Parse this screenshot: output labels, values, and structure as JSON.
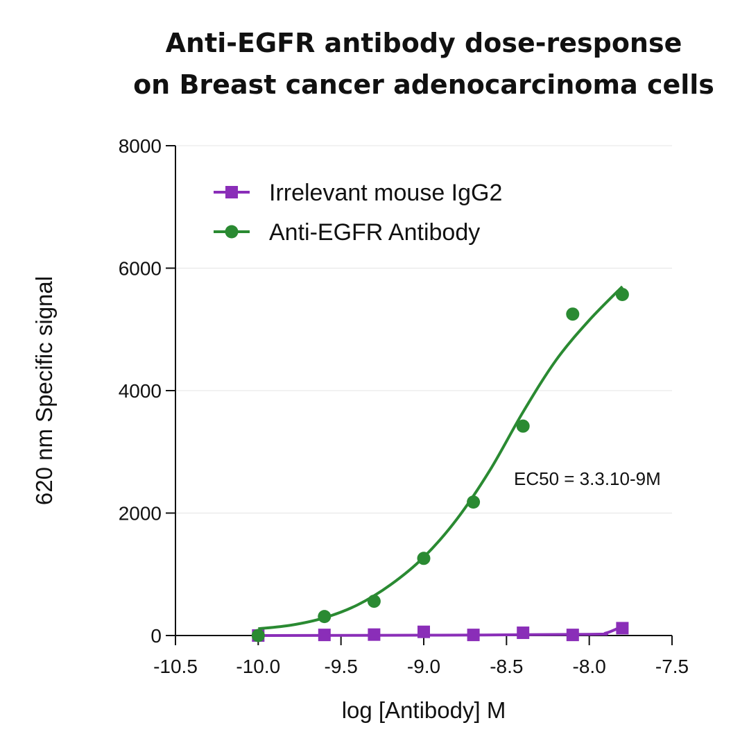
{
  "chart_data": {
    "type": "scatter",
    "title": "Anti-EGFR antibody dose-response",
    "subtitle": "on Breast cancer adenocarcinoma cells",
    "xlabel": "log [Antibody] M",
    "ylabel": "620 nm Specific signal",
    "xlim": [
      -10.5,
      -7.5
    ],
    "ylim": [
      0,
      8000
    ],
    "x_ticks": [
      "-10.5",
      "-10.0",
      "-9.5",
      "-9.0",
      "-8.5",
      "-8.0",
      "-7.5"
    ],
    "y_ticks": [
      "0",
      "2000",
      "4000",
      "6000",
      "8000"
    ],
    "grid": "horizontal",
    "legend_position": "top-left",
    "annotation": "EC50 = 3.3.10-9M",
    "series": [
      {
        "name": "Irrelevant mouse IgG2",
        "marker": "square",
        "color": "#8a2eb8",
        "x": [
          -10.0,
          -9.6,
          -9.3,
          -9.0,
          -8.7,
          -8.4,
          -8.1,
          -7.8
        ],
        "y": [
          0,
          10,
          15,
          60,
          10,
          45,
          10,
          120
        ],
        "fit": [
          [
            -10.0,
            0
          ],
          [
            -9.0,
            5
          ],
          [
            -8.0,
            20
          ],
          [
            -7.9,
            40
          ],
          [
            -7.8,
            150
          ]
        ]
      },
      {
        "name": "Anti-EGFR Antibody",
        "marker": "circle",
        "color": "#2a8a32",
        "x": [
          -10.0,
          -9.6,
          -9.3,
          -9.0,
          -8.7,
          -8.4,
          -8.1,
          -7.8
        ],
        "y": [
          0,
          310,
          560,
          1260,
          2180,
          3420,
          5250,
          5570
        ],
        "fit": [
          [
            -10.0,
            110
          ],
          [
            -9.8,
            170
          ],
          [
            -9.6,
            290
          ],
          [
            -9.4,
            500
          ],
          [
            -9.2,
            830
          ],
          [
            -9.0,
            1280
          ],
          [
            -8.8,
            1900
          ],
          [
            -8.6,
            2700
          ],
          [
            -8.4,
            3650
          ],
          [
            -8.2,
            4500
          ],
          [
            -8.0,
            5150
          ],
          [
            -7.8,
            5700
          ]
        ]
      }
    ]
  }
}
